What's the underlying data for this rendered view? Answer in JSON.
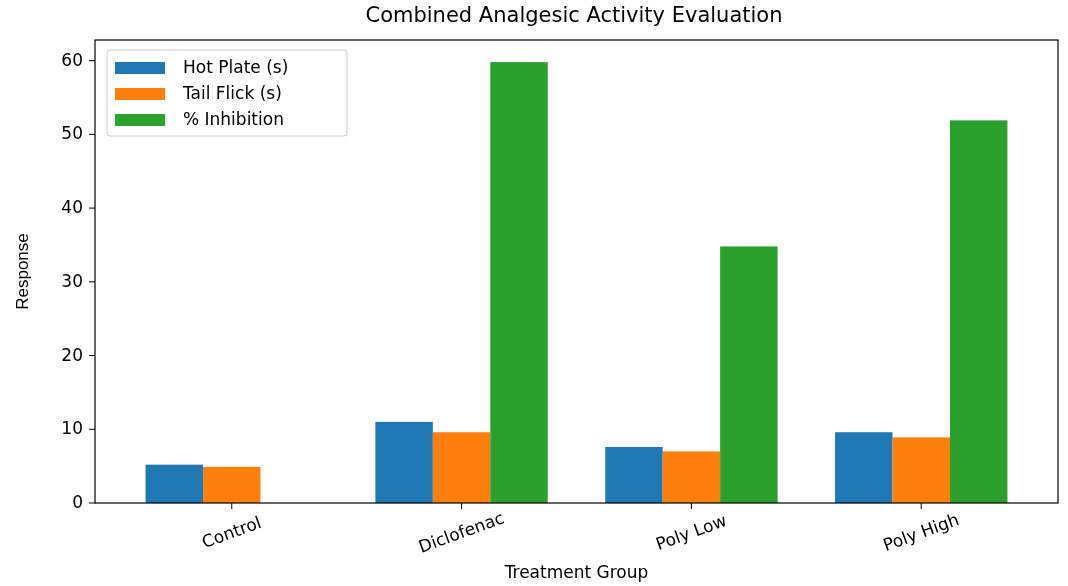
{
  "chart_data": {
    "type": "bar",
    "title": "Combined Analgesic Activity Evaluation",
    "xlabel": "Treatment Group",
    "ylabel": "Response",
    "categories": [
      "Control",
      "Diclofenac",
      "Poly Low",
      "Poly High"
    ],
    "series": [
      {
        "name": "Hot Plate (s)",
        "color": "#1f77b4",
        "values": [
          5.2,
          11.0,
          7.6,
          9.6
        ]
      },
      {
        "name": "Tail Flick (s)",
        "color": "#ff7f0e",
        "values": [
          4.9,
          9.6,
          7.0,
          8.9
        ]
      },
      {
        "name": "% Inhibition",
        "color": "#2ca02c",
        "values": [
          0,
          59.8,
          34.8,
          51.9
        ]
      }
    ],
    "ylim": [
      0,
      62.8
    ],
    "yticks": [
      0,
      10,
      20,
      30,
      40,
      50,
      60
    ],
    "legend": "top left",
    "grid": false
  }
}
